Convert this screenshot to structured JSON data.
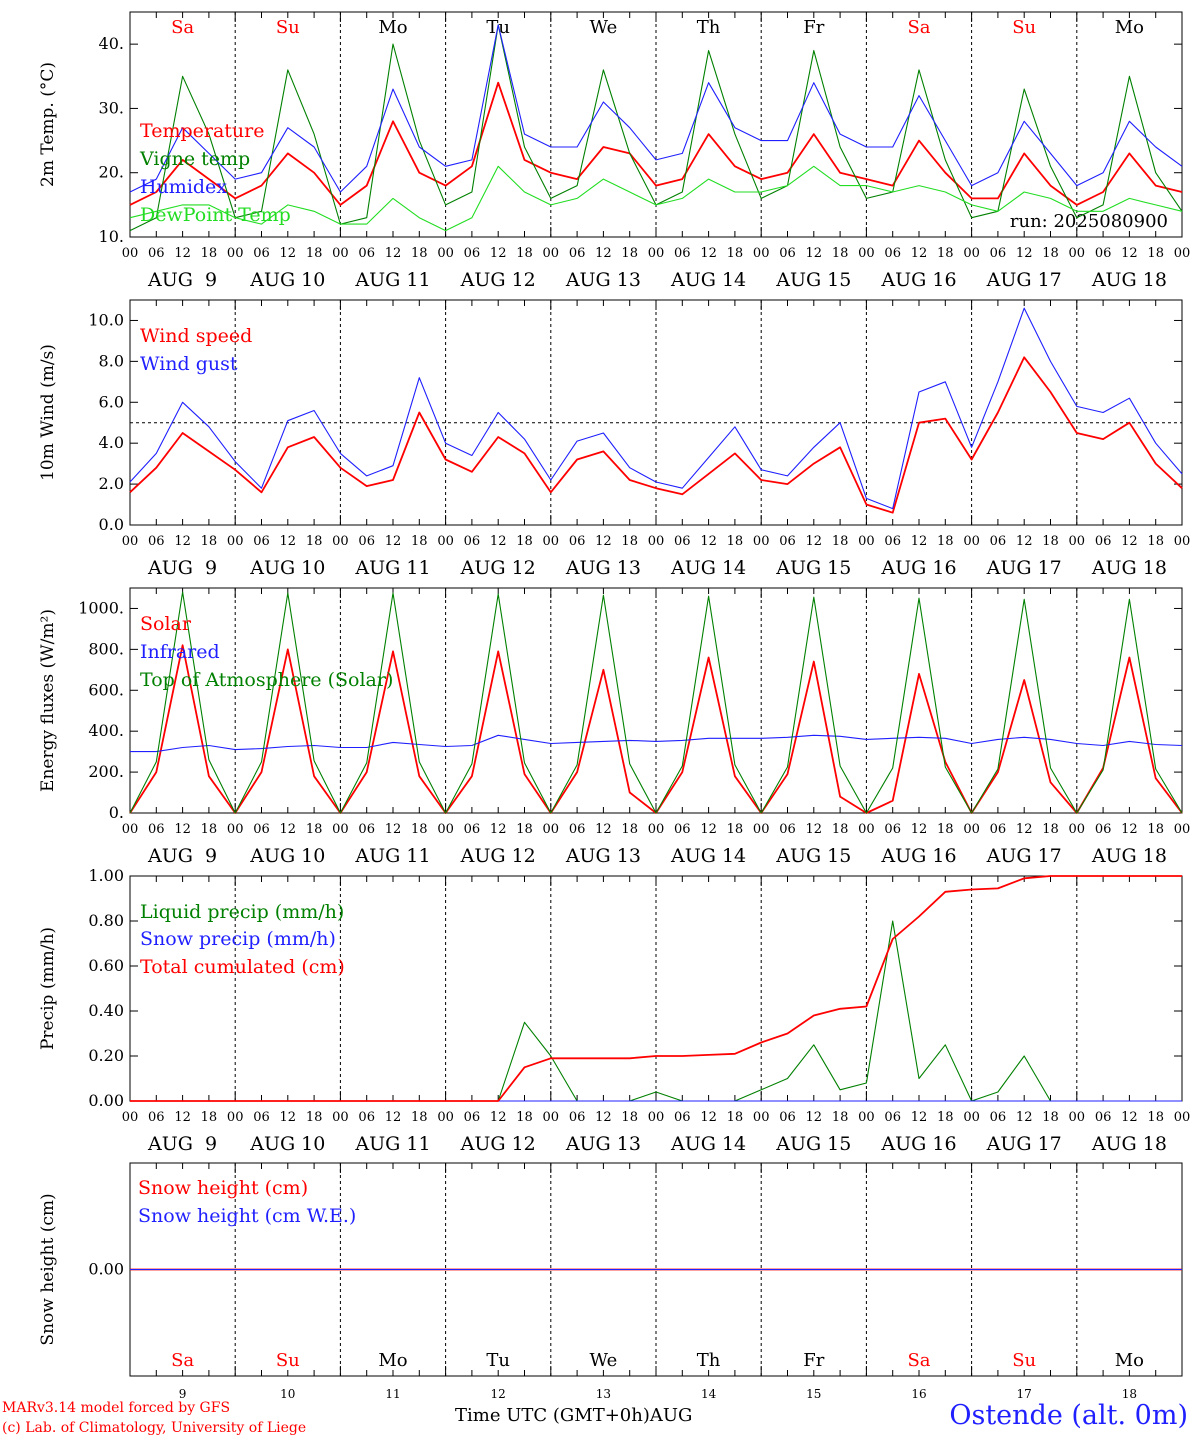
{
  "footer": {
    "model": "MARv3.14 model forced by GFS",
    "lab": "(c) Lab. of Climatology, University of Liege",
    "time_label": "Time UTC (GMT+0h)AUG",
    "station": "Ostende (alt. 0m)"
  },
  "run_label": "run: 2025080900",
  "days": {
    "weekday": [
      "Sa",
      "Su",
      "Mo",
      "Tu",
      "We",
      "Th",
      "Fr",
      "Sa",
      "Su",
      "Mo"
    ],
    "weekday_color": [
      "#ff0000",
      "#ff0000",
      "#000000",
      "#000000",
      "#000000",
      "#000000",
      "#000000",
      "#ff0000",
      "#ff0000",
      "#000000"
    ],
    "date_label": [
      "AUG  9",
      "AUG 10",
      "AUG 11",
      "AUG 12",
      "AUG 13",
      "AUG 14",
      "AUG 15",
      "AUG 16",
      "AUG 17",
      "AUG 18"
    ],
    "day_number": [
      "9",
      "10",
      "11",
      "12",
      "13",
      "14",
      "15",
      "16",
      "17",
      "18"
    ],
    "hour_ticks": [
      "00",
      "06",
      "12",
      "18"
    ],
    "end_tick": "00"
  },
  "colors": {
    "red": "#ff0000",
    "green": "#008000",
    "blue": "#1f1fff",
    "light_green": "#22dd22",
    "black": "#000000"
  },
  "chart_data": [
    {
      "type": "line",
      "ylabel": "2m Temp. (°C)",
      "ylim": [
        10,
        45
      ],
      "yticks": [
        "10.",
        "20.",
        "30.",
        "40."
      ],
      "x_start": "2025-08-09 00:00",
      "step_hours": 6,
      "series": [
        {
          "name": "Temperature",
          "color": "red",
          "values": [
            15,
            17,
            22,
            19,
            16,
            18,
            23,
            20,
            15,
            18,
            28,
            20,
            18,
            21,
            34,
            22,
            20,
            19,
            24,
            23,
            18,
            19,
            26,
            21,
            19,
            20,
            26,
            20,
            19,
            18,
            25,
            20,
            16,
            16,
            23,
            18,
            15,
            17,
            23,
            18,
            17
          ]
        },
        {
          "name": "Vigne temp",
          "color": "green",
          "values": [
            11,
            13,
            35,
            26,
            13,
            14,
            36,
            26,
            12,
            13,
            40,
            25,
            15,
            17,
            43,
            24,
            16,
            18,
            36,
            23,
            15,
            17,
            39,
            26,
            16,
            18,
            39,
            24,
            16,
            17,
            36,
            22,
            13,
            14,
            33,
            21,
            13,
            15,
            35,
            20,
            14
          ]
        },
        {
          "name": "Humidex",
          "color": "blue",
          "values": [
            17,
            19,
            27,
            23,
            19,
            20,
            27,
            24,
            17,
            21,
            33,
            24,
            21,
            22,
            43,
            26,
            24,
            24,
            31,
            27,
            22,
            23,
            34,
            27,
            25,
            25,
            34,
            26,
            24,
            24,
            32,
            25,
            18,
            20,
            28,
            23,
            18,
            20,
            28,
            24,
            21
          ]
        },
        {
          "name": "DewPoint Temp",
          "color": "light_green",
          "values": [
            13,
            14,
            15,
            15,
            13,
            12,
            15,
            14,
            12,
            12,
            16,
            13,
            11,
            13,
            21,
            17,
            15,
            16,
            19,
            17,
            15,
            16,
            19,
            17,
            17,
            18,
            21,
            18,
            18,
            17,
            18,
            17,
            15,
            14,
            17,
            16,
            14,
            14,
            16,
            15,
            14
          ]
        }
      ]
    },
    {
      "type": "line",
      "ylabel": "10m Wind (m/s)",
      "ylim": [
        0,
        11
      ],
      "yticks": [
        "0.0",
        "2.0",
        "4.0",
        "6.0",
        "8.0",
        "10.0"
      ],
      "reference_line": 5,
      "x_start": "2025-08-09 00:00",
      "step_hours": 6,
      "series": [
        {
          "name": "Wind speed",
          "color": "red",
          "values": [
            1.6,
            2.8,
            4.5,
            3.6,
            2.7,
            1.6,
            3.8,
            4.3,
            2.8,
            1.9,
            2.2,
            5.5,
            3.2,
            2.6,
            4.3,
            3.5,
            1.6,
            3.2,
            3.6,
            2.2,
            1.8,
            1.5,
            2.5,
            3.5,
            2.2,
            2.0,
            3.0,
            3.8,
            1.0,
            0.6,
            5.0,
            5.2,
            3.2,
            5.5,
            8.2,
            6.5,
            4.5,
            4.2,
            5.0,
            3.0,
            1.8
          ]
        },
        {
          "name": "Wind gust",
          "color": "blue",
          "values": [
            2.1,
            3.5,
            6.0,
            4.8,
            3.1,
            1.8,
            5.1,
            5.6,
            3.5,
            2.4,
            2.9,
            7.2,
            4.0,
            3.4,
            5.5,
            4.2,
            2.2,
            4.1,
            4.5,
            2.8,
            2.1,
            1.8,
            3.3,
            4.8,
            2.7,
            2.4,
            3.8,
            5.0,
            1.3,
            0.8,
            6.5,
            7.0,
            3.8,
            7.0,
            10.6,
            8.0,
            5.8,
            5.5,
            6.2,
            4.0,
            2.5
          ]
        }
      ]
    },
    {
      "type": "line",
      "ylabel": "Energy fluxes (W/m²)",
      "ylim": [
        0,
        1100
      ],
      "yticks": [
        "0.",
        "200.",
        "400.",
        "600.",
        "800.",
        "1000."
      ],
      "x_start": "2025-08-09 00:00",
      "step_hours": 6,
      "series": [
        {
          "name": "Solar",
          "color": "red",
          "values": [
            0,
            200,
            820,
            180,
            0,
            200,
            800,
            180,
            0,
            200,
            790,
            180,
            0,
            180,
            790,
            190,
            0,
            200,
            700,
            100,
            0,
            200,
            760,
            180,
            0,
            190,
            740,
            80,
            0,
            60,
            680,
            250,
            0,
            200,
            650,
            150,
            0,
            220,
            760,
            170,
            0
          ]
        },
        {
          "name": "Infrared",
          "color": "blue",
          "values": [
            300,
            300,
            320,
            330,
            310,
            315,
            325,
            330,
            320,
            320,
            345,
            335,
            325,
            330,
            380,
            360,
            340,
            345,
            350,
            355,
            350,
            355,
            365,
            365,
            365,
            370,
            380,
            375,
            360,
            365,
            370,
            365,
            340,
            360,
            370,
            360,
            340,
            330,
            350,
            335,
            330
          ]
        },
        {
          "name": "Top of Atmosphere (Solar)",
          "color": "green",
          "values": [
            0,
            250,
            1080,
            260,
            0,
            250,
            1075,
            255,
            0,
            245,
            1075,
            250,
            0,
            240,
            1070,
            245,
            0,
            235,
            1065,
            240,
            0,
            230,
            1060,
            235,
            0,
            225,
            1055,
            230,
            0,
            220,
            1050,
            225,
            0,
            215,
            1045,
            220,
            0,
            210,
            1045,
            215,
            0
          ]
        }
      ]
    },
    {
      "type": "line",
      "ylabel": "Precip (mm/h)",
      "ylim": [
        0,
        1
      ],
      "yticks": [
        "0.00",
        "0.20",
        "0.40",
        "0.60",
        "0.80",
        "1.00"
      ],
      "x_start": "2025-08-09 00:00",
      "step_hours": 6,
      "series": [
        {
          "name": "Liquid precip (mm/h)",
          "color": "green",
          "values": [
            0,
            0,
            0,
            0,
            0,
            0,
            0,
            0,
            0,
            0,
            0,
            0,
            0,
            0,
            0,
            0.35,
            0.2,
            0,
            0,
            0,
            0.04,
            0,
            0,
            0,
            0.05,
            0.1,
            0.25,
            0.05,
            0.08,
            0.8,
            0.1,
            0.25,
            0,
            0.04,
            0.2,
            0,
            0,
            0,
            0,
            0,
            0
          ]
        },
        {
          "name": "Snow precip (mm/h)",
          "color": "blue",
          "values": [
            0,
            0,
            0,
            0,
            0,
            0,
            0,
            0,
            0,
            0,
            0,
            0,
            0,
            0,
            0,
            0,
            0,
            0,
            0,
            0,
            0,
            0,
            0,
            0,
            0,
            0,
            0,
            0,
            0,
            0,
            0,
            0,
            0,
            0,
            0,
            0,
            0,
            0,
            0,
            0,
            0
          ]
        },
        {
          "name": "Total cumulated (cm)",
          "color": "red",
          "values": [
            0,
            0,
            0,
            0,
            0,
            0,
            0,
            0,
            0,
            0,
            0,
            0,
            0,
            0,
            0,
            0.15,
            0.19,
            0.19,
            0.19,
            0.19,
            0.2,
            0.2,
            0.205,
            0.21,
            0.26,
            0.3,
            0.38,
            0.41,
            0.42,
            0.72,
            0.82,
            0.93,
            0.94,
            0.945,
            0.99,
            1.0,
            1.0,
            1.0,
            1.0,
            1.0,
            1.0
          ]
        }
      ]
    },
    {
      "type": "line",
      "ylabel": "Snow height (cm)",
      "ylim": [
        -1,
        1
      ],
      "yticks": [
        "0.00"
      ],
      "x_start": "2025-08-09 00:00",
      "step_hours": 6,
      "series": [
        {
          "name": "Snow height (cm)",
          "color": "red",
          "values": [
            0,
            0,
            0,
            0,
            0,
            0,
            0,
            0,
            0,
            0,
            0,
            0,
            0,
            0,
            0,
            0,
            0,
            0,
            0,
            0,
            0,
            0,
            0,
            0,
            0,
            0,
            0,
            0,
            0,
            0,
            0,
            0,
            0,
            0,
            0,
            0,
            0,
            0,
            0,
            0,
            0
          ]
        },
        {
          "name": "Snow height (cm W.E.)",
          "color": "blue",
          "values": [
            0,
            0,
            0,
            0,
            0,
            0,
            0,
            0,
            0,
            0,
            0,
            0,
            0,
            0,
            0,
            0,
            0,
            0,
            0,
            0,
            0,
            0,
            0,
            0,
            0,
            0,
            0,
            0,
            0,
            0,
            0,
            0,
            0,
            0,
            0,
            0,
            0,
            0,
            0,
            0,
            0
          ]
        }
      ]
    }
  ]
}
